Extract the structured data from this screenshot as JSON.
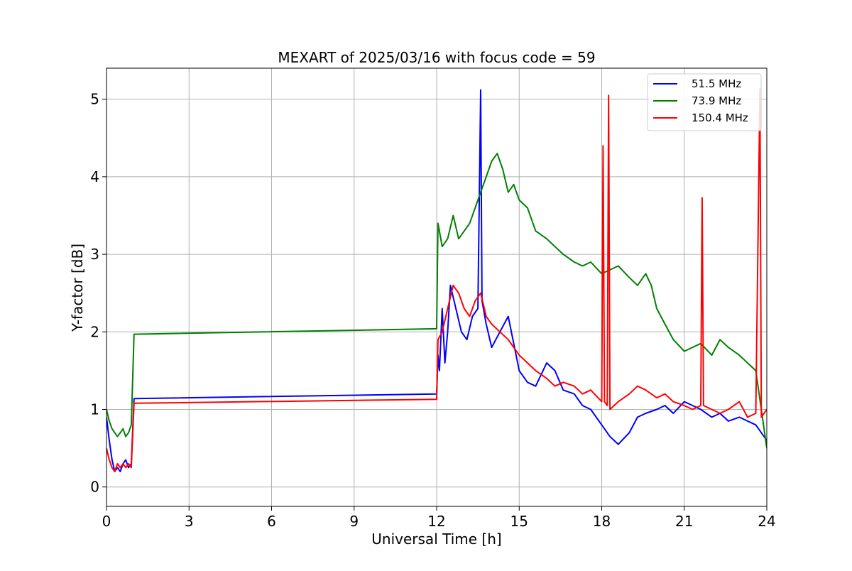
{
  "chart_data": {
    "type": "line",
    "title": "MEXART of 2025/03/16 with focus code = 59",
    "xlabel": "Universal Time [h]",
    "ylabel": "Y-factor [dB]",
    "xlim": [
      0,
      24
    ],
    "ylim": [
      -0.25,
      5.4
    ],
    "xticks": [
      0,
      3,
      6,
      9,
      12,
      15,
      18,
      21,
      24
    ],
    "yticks": [
      0,
      1,
      2,
      3,
      4,
      5
    ],
    "grid": true,
    "legend_position": "top-right",
    "series": [
      {
        "name": "51.5 MHz",
        "color": "#0000ff",
        "x": [
          0,
          0.1,
          0.2,
          0.3,
          0.4,
          0.5,
          0.6,
          0.7,
          0.8,
          0.9,
          1.0,
          12.0,
          12.05,
          12.1,
          12.2,
          12.3,
          12.4,
          12.5,
          12.7,
          12.9,
          13.1,
          13.3,
          13.5,
          13.6,
          13.65,
          13.8,
          14.0,
          14.3,
          14.6,
          15.0,
          15.3,
          15.6,
          16.0,
          16.3,
          16.6,
          17.0,
          17.3,
          17.6,
          18.0,
          18.3,
          18.6,
          19.0,
          19.3,
          19.6,
          20.0,
          20.3,
          20.6,
          21.0,
          21.3,
          21.6,
          22.0,
          22.3,
          22.6,
          23.0,
          23.3,
          23.6,
          24.0
        ],
        "y": [
          0.9,
          0.6,
          0.35,
          0.2,
          0.25,
          0.2,
          0.3,
          0.35,
          0.25,
          0.3,
          1.14,
          1.2,
          1.7,
          1.5,
          2.3,
          1.6,
          2.0,
          2.6,
          2.3,
          2.0,
          1.9,
          2.2,
          2.3,
          5.12,
          2.4,
          2.1,
          1.8,
          2.0,
          2.2,
          1.5,
          1.35,
          1.3,
          1.6,
          1.5,
          1.25,
          1.2,
          1.05,
          1.0,
          0.8,
          0.65,
          0.55,
          0.7,
          0.9,
          0.95,
          1.0,
          1.05,
          0.95,
          1.1,
          1.05,
          1.0,
          0.9,
          0.95,
          0.85,
          0.9,
          0.85,
          0.8,
          0.6
        ]
      },
      {
        "name": "73.9 MHz",
        "color": "#008000",
        "x": [
          0,
          0.1,
          0.2,
          0.3,
          0.4,
          0.5,
          0.6,
          0.7,
          0.8,
          0.9,
          1.0,
          12.0,
          12.05,
          12.2,
          12.4,
          12.6,
          12.8,
          13.0,
          13.2,
          13.4,
          13.6,
          13.8,
          14.0,
          14.2,
          14.4,
          14.6,
          14.8,
          15.0,
          15.3,
          15.6,
          16.0,
          16.3,
          16.6,
          17.0,
          17.3,
          17.6,
          18.0,
          18.3,
          18.6,
          19.0,
          19.3,
          19.6,
          19.8,
          20.0,
          20.3,
          20.6,
          21.0,
          21.3,
          21.6,
          22.0,
          22.3,
          22.6,
          23.0,
          23.3,
          23.6,
          24.0
        ],
        "y": [
          1.0,
          0.85,
          0.75,
          0.7,
          0.65,
          0.7,
          0.75,
          0.65,
          0.7,
          0.8,
          1.97,
          2.04,
          3.4,
          3.1,
          3.2,
          3.5,
          3.2,
          3.3,
          3.4,
          3.6,
          3.8,
          4.0,
          4.2,
          4.3,
          4.1,
          3.8,
          3.9,
          3.7,
          3.6,
          3.3,
          3.2,
          3.1,
          3.0,
          2.9,
          2.85,
          2.9,
          2.75,
          2.8,
          2.85,
          2.7,
          2.6,
          2.75,
          2.6,
          2.3,
          2.1,
          1.9,
          1.75,
          1.8,
          1.85,
          1.7,
          1.9,
          1.8,
          1.7,
          1.6,
          1.5,
          0.5
        ]
      },
      {
        "name": "150.4 MHz",
        "color": "#ff0000",
        "x": [
          0,
          0.1,
          0.2,
          0.3,
          0.4,
          0.5,
          0.6,
          0.7,
          0.8,
          0.9,
          1.0,
          12.0,
          12.05,
          12.2,
          12.4,
          12.6,
          12.8,
          13.0,
          13.2,
          13.4,
          13.6,
          13.8,
          14.0,
          14.3,
          14.6,
          15.0,
          15.3,
          15.6,
          16.0,
          16.3,
          16.6,
          17.0,
          17.3,
          17.6,
          18.0,
          18.05,
          18.1,
          18.2,
          18.25,
          18.3,
          18.6,
          19.0,
          19.3,
          19.6,
          20.0,
          20.3,
          20.6,
          21.0,
          21.3,
          21.6,
          21.65,
          21.7,
          22.0,
          22.3,
          22.6,
          23.0,
          23.3,
          23.6,
          23.75,
          23.8,
          24.0
        ],
        "y": [
          0.5,
          0.35,
          0.25,
          0.2,
          0.3,
          0.25,
          0.3,
          0.25,
          0.3,
          0.25,
          1.08,
          1.13,
          1.9,
          2.0,
          2.3,
          2.6,
          2.5,
          2.3,
          2.2,
          2.4,
          2.5,
          2.2,
          2.1,
          2.0,
          1.9,
          1.7,
          1.6,
          1.5,
          1.4,
          1.3,
          1.35,
          1.3,
          1.2,
          1.25,
          1.1,
          4.4,
          1.1,
          1.05,
          5.05,
          1.0,
          1.1,
          1.2,
          1.3,
          1.25,
          1.15,
          1.2,
          1.1,
          1.05,
          1.0,
          1.05,
          3.73,
          1.05,
          1.0,
          0.95,
          1.0,
          1.1,
          0.9,
          0.95,
          5.13,
          0.9,
          1.0
        ]
      }
    ]
  }
}
